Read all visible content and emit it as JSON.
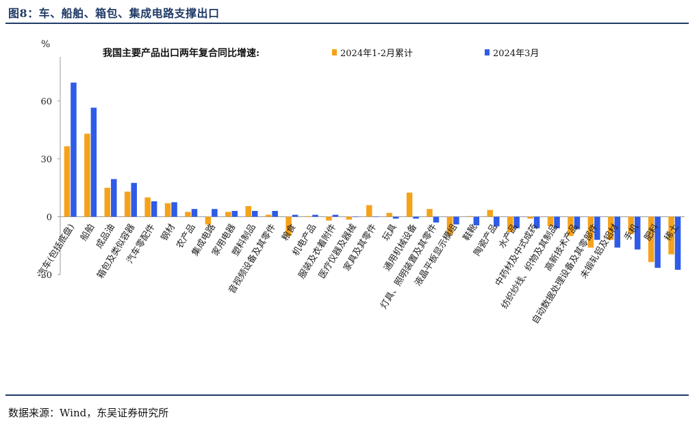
{
  "figure_title": "图8：车、船舶、箱包、集成电路支撑出口",
  "source": "数据来源：Wind，东吴证券研究所",
  "colors": {
    "series1": "#F5A21B",
    "series2": "#2E5BE8",
    "title": "#1f3a66"
  },
  "chart_data": {
    "type": "bar",
    "title": "我国主要产品出口两年复合同比增速:",
    "ylabel": "%",
    "xlabel": "",
    "ylim": [
      -30,
      80
    ],
    "yticks": [
      -30,
      0,
      30,
      60
    ],
    "legend_placement": "top",
    "categories": [
      "汽车(包括底盘)",
      "船舶",
      "成品油",
      "箱包及类似容器",
      "汽车零配件",
      "钢材",
      "农产品",
      "集成电路",
      "家用电器",
      "塑料制品",
      "音视频设备及其零件",
      "粮食",
      "机电产品",
      "服装及衣着附件",
      "医疗仪器及器械",
      "家具及其零件",
      "玩具",
      "通用机械设备",
      "灯具、照明装置及其零件",
      "液晶平板显示模组",
      "鞋靴",
      "陶瓷产品",
      "水产品",
      "中药材及中式成药",
      "纺织纱线、织物及其制品",
      "高新技术产品",
      "自动数据处理设备及其零部件",
      "未锻轧铝及铝材",
      "手机",
      "肥料",
      "稀土"
    ],
    "series": [
      {
        "name": "2024年1-2月累计",
        "values": [
          36.5,
          43,
          15,
          13,
          10,
          7,
          2.5,
          -4,
          2.5,
          5.5,
          1,
          -10,
          0.3,
          -2,
          -1.5,
          6,
          2,
          12.5,
          4,
          -9.5,
          0.3,
          3.5,
          -8,
          -1,
          -5,
          -10,
          -16,
          -12,
          -9,
          -23.5,
          -19.5
        ]
      },
      {
        "name": "2024年3月",
        "values": [
          69.5,
          56.5,
          19.5,
          17.5,
          8,
          7.5,
          4,
          4,
          3,
          3,
          3,
          1,
          1,
          1,
          0,
          0,
          -1,
          -1,
          -3,
          -4,
          -4.5,
          -5,
          -6,
          -6,
          -6,
          -6.5,
          -12,
          -16,
          -17,
          -26.5,
          -27.5
        ]
      }
    ]
  }
}
